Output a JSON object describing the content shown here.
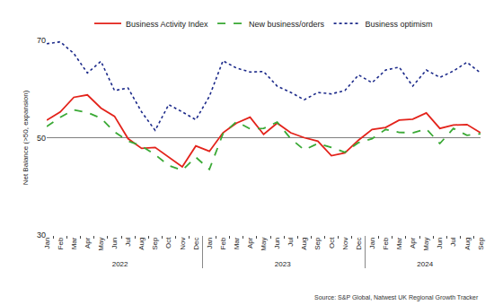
{
  "chart_data": {
    "type": "line",
    "y_label": "Net Balance (>50, expansion)",
    "source": "Source: S&P Global, Natwest UK Regional Growth Tracker",
    "categories": [
      [
        "2022",
        "Jan"
      ],
      [
        "2022",
        "Feb"
      ],
      [
        "2022",
        "Mar"
      ],
      [
        "2022",
        "Apr"
      ],
      [
        "2022",
        "May"
      ],
      [
        "2022",
        "Jun"
      ],
      [
        "2022",
        "Jul"
      ],
      [
        "2022",
        "Aug"
      ],
      [
        "2022",
        "Sep"
      ],
      [
        "2022",
        "Oct"
      ],
      [
        "2022",
        "Nov"
      ],
      [
        "2022",
        "Dec"
      ],
      [
        "2023",
        "Jan"
      ],
      [
        "2023",
        "Feb"
      ],
      [
        "2023",
        "Mar"
      ],
      [
        "2023",
        "Apr"
      ],
      [
        "2023",
        "May"
      ],
      [
        "2023",
        "Jun"
      ],
      [
        "2023",
        "Jul"
      ],
      [
        "2023",
        "Aug"
      ],
      [
        "2023",
        "Sep"
      ],
      [
        "2023",
        "Oct"
      ],
      [
        "2023",
        "Nov"
      ],
      [
        "2023",
        "Dec"
      ],
      [
        "2024",
        "Jan"
      ],
      [
        "2024",
        "Feb"
      ],
      [
        "2024",
        "Mar"
      ],
      [
        "2024",
        "Apr"
      ],
      [
        "2024",
        "May"
      ],
      [
        "2024",
        "Jun"
      ],
      [
        "2024",
        "Jul"
      ],
      [
        "2024",
        "Aug"
      ],
      [
        "2024",
        "Sep"
      ]
    ],
    "series": [
      {
        "name": "Business Activity Index",
        "color": "#e3231b",
        "line_style": "solid",
        "values": [
          53.6,
          55.3,
          58.3,
          58.8,
          56.1,
          54.4,
          49.8,
          47.8,
          48.0,
          46.0,
          44.0,
          48.3,
          47.2,
          51.0,
          53.0,
          54.2,
          50.7,
          53.0,
          51.0,
          50.0,
          49.3,
          46.3,
          46.9,
          49.5,
          51.7,
          52.1,
          53.6,
          53.8,
          55.1,
          51.9,
          52.6,
          52.7,
          51.0
        ]
      },
      {
        "name": "New business/orders",
        "color": "#3aa935",
        "line_style": "dash",
        "values": [
          52.3,
          54.2,
          55.7,
          55.2,
          54.0,
          51.2,
          49.3,
          48.3,
          46.5,
          44.3,
          43.3,
          46.0,
          43.5,
          50.8,
          53.3,
          51.8,
          51.9,
          53.2,
          49.8,
          47.5,
          48.8,
          48.0,
          47.0,
          49.0,
          49.8,
          51.7,
          51.1,
          51.0,
          51.8,
          48.8,
          51.9,
          50.5,
          50.8
        ]
      },
      {
        "name": "Business optimism",
        "color": "#1c2a8a",
        "line_style": "dot",
        "values": [
          69.3,
          69.7,
          67.3,
          63.3,
          65.7,
          59.7,
          60.2,
          55.3,
          51.5,
          56.8,
          55.3,
          53.7,
          58.5,
          65.8,
          64.3,
          63.5,
          63.6,
          60.6,
          59.3,
          57.8,
          59.3,
          59.0,
          59.7,
          62.9,
          61.3,
          63.9,
          64.5,
          60.6,
          63.9,
          62.4,
          63.7,
          65.5,
          63.3
        ]
      }
    ],
    "ylim": [
      30,
      70
    ],
    "yticks": [
      30,
      50,
      70
    ],
    "grid": true,
    "legend": "top"
  }
}
